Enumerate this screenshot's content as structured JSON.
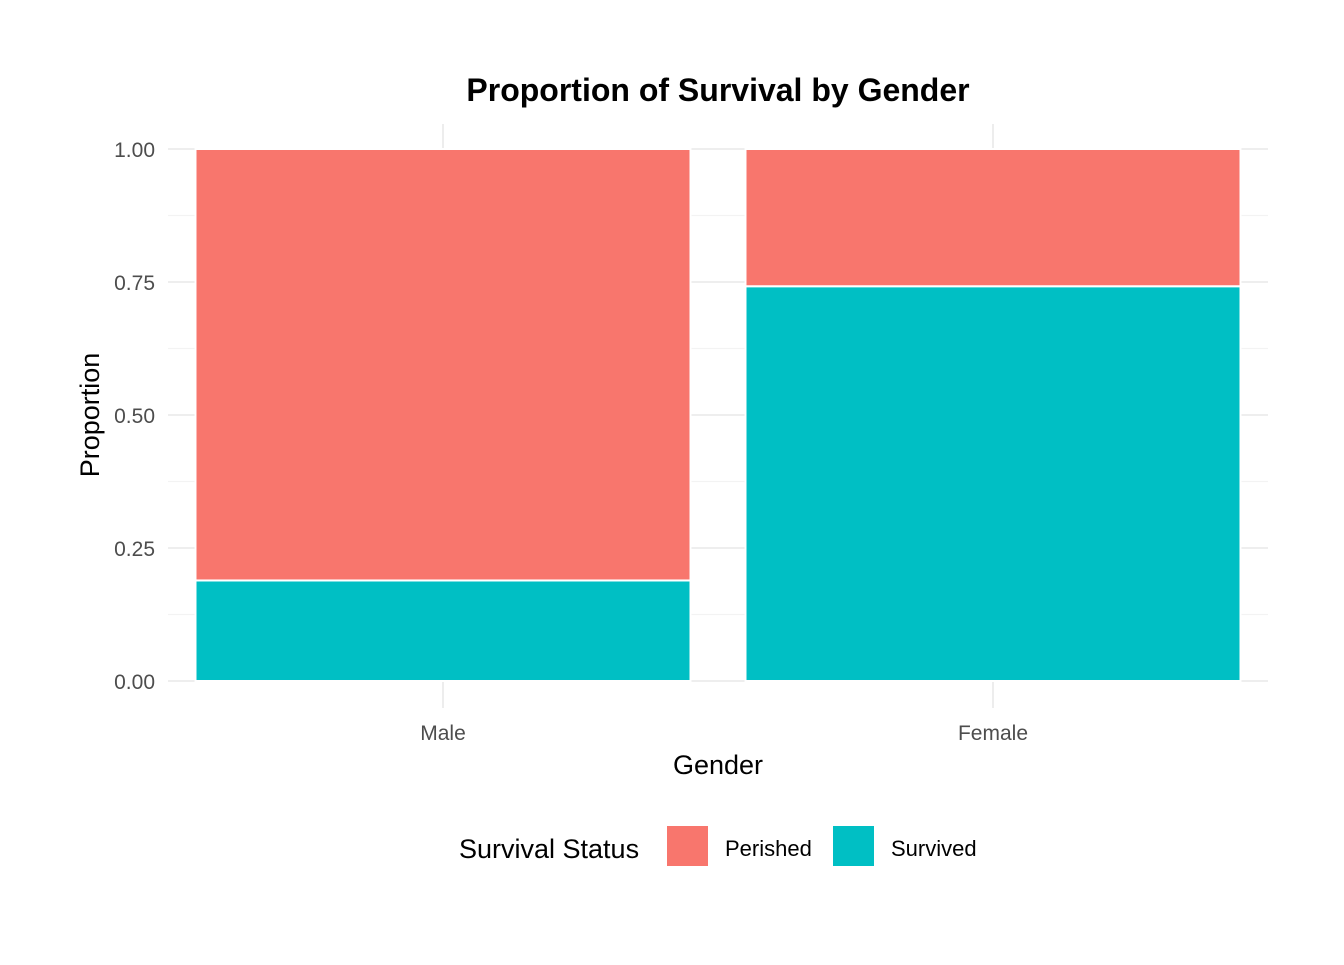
{
  "chart_data": {
    "type": "bar",
    "stacked": true,
    "title": "Proportion of Survival by Gender",
    "xlabel": "Gender",
    "ylabel": "Proportion",
    "categories": [
      "Male",
      "Female"
    ],
    "series": [
      {
        "name": "Survived",
        "color": "#00BFC4",
        "values": [
          0.189,
          0.742
        ]
      },
      {
        "name": "Perished",
        "color": "#F8766D",
        "values": [
          0.811,
          0.258
        ]
      }
    ],
    "ylim": [
      0,
      1
    ],
    "yticks": [
      "0.00",
      "0.25",
      "0.50",
      "0.75",
      "1.00"
    ],
    "grid": true,
    "legend": {
      "title": "Survival Status",
      "position": "bottom",
      "items": [
        {
          "label": "Perished",
          "color": "#F8766D"
        },
        {
          "label": "Survived",
          "color": "#00BFC4"
        }
      ]
    }
  }
}
